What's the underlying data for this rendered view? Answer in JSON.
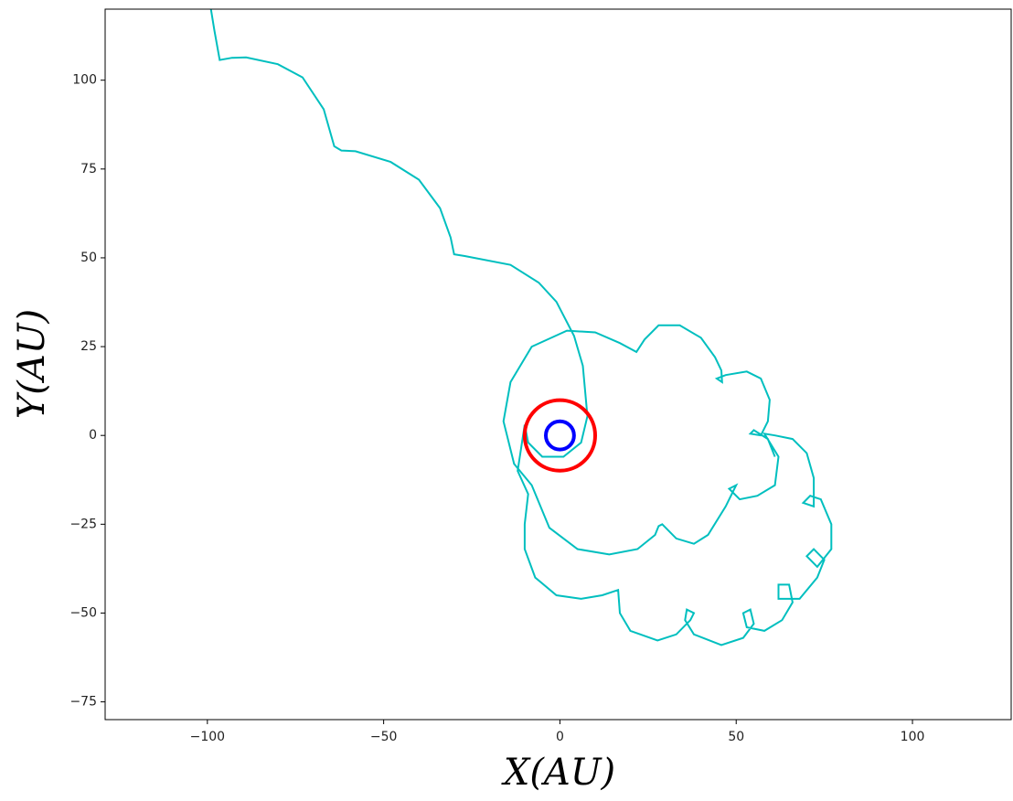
{
  "chart_data": {
    "type": "line",
    "xlabel": "X(AU)",
    "ylabel": "Y(AU)",
    "xlim": [
      -129,
      128
    ],
    "ylim": [
      -80,
      120
    ],
    "xticks": [
      {
        "value": -100,
        "label": "−100"
      },
      {
        "value": -50,
        "label": "−50"
      },
      0,
      50,
      100
    ],
    "yticks": [
      {
        "value": -75,
        "label": "−75"
      },
      {
        "value": -50,
        "label": "−50"
      },
      {
        "value": -25,
        "label": "−25"
      },
      0,
      25,
      50,
      75,
      100
    ],
    "series": [
      {
        "color": "#00bfbf",
        "x": [
          -99,
          -98,
          -96.5,
          -93,
          -89,
          -80,
          -73,
          -67,
          -64,
          -62,
          -58,
          -48,
          -40,
          -34,
          -31,
          -30,
          -27,
          -14,
          -6,
          -1,
          4,
          6.5,
          7.8,
          6,
          1,
          -5,
          -9,
          -10,
          -12,
          -9,
          -10,
          -10,
          -7,
          -1,
          6,
          12,
          16.5,
          17,
          20,
          27.7,
          33,
          37,
          38,
          36,
          35.5,
          38,
          45.8,
          52,
          55,
          54,
          52,
          53,
          58,
          63,
          66,
          65,
          62,
          62,
          68,
          73,
          75,
          72,
          70,
          73,
          77,
          77,
          74,
          71,
          69,
          72,
          72,
          70,
          66,
          61,
          58,
          62,
          61,
          56,
          51,
          48,
          50,
          47,
          42,
          38,
          33,
          29,
          28,
          27,
          22,
          14,
          5,
          -3,
          -8,
          -13,
          -16,
          -14,
          -8,
          2,
          10,
          17,
          21.7,
          24,
          28,
          34,
          40,
          44,
          45.8,
          46,
          44.5,
          47,
          53,
          57,
          59.5,
          59,
          57,
          54,
          55,
          59,
          61
        ],
        "y": [
          120,
          114,
          105.7,
          106.3,
          106.4,
          104.5,
          100.8,
          91.8,
          81.4,
          80.2,
          80,
          77,
          72,
          64,
          55.7,
          51,
          50.5,
          48,
          43,
          37.6,
          28,
          19.6,
          5.4,
          -2,
          -6,
          -6,
          -2,
          3,
          -10,
          -16.5,
          -25,
          -32,
          -40,
          -45,
          -46,
          -45,
          -43.5,
          -50,
          -55,
          -57.7,
          -56,
          -52,
          -50,
          -49,
          -52,
          -56,
          -59,
          -57,
          -53,
          -49,
          -50,
          -54,
          -55,
          -52,
          -47,
          -42,
          -42,
          -46,
          -46,
          -40,
          -35,
          -32,
          -34,
          -37,
          -32,
          -25,
          -18,
          -17,
          -19,
          -20,
          -12,
          -5,
          -1,
          0,
          0.5,
          -6,
          -14,
          -17,
          -18,
          -15,
          -14,
          -20,
          -28,
          -30.5,
          -29,
          -25,
          -25.5,
          -28,
          -32,
          -33.5,
          -32,
          -26,
          -14,
          -8,
          4,
          15,
          25,
          29.5,
          29,
          26,
          23.5,
          27,
          31,
          31,
          27.5,
          22,
          18.3,
          15,
          16,
          17,
          18,
          16,
          10,
          4,
          0,
          0.5,
          1.5,
          -1,
          -6
        ]
      }
    ],
    "circles": [
      {
        "cx": 0,
        "cy": 0,
        "r": 10,
        "color": "#ff0000"
      },
      {
        "cx": 0,
        "cy": 0,
        "r": 4,
        "color": "#0000ff"
      }
    ]
  }
}
